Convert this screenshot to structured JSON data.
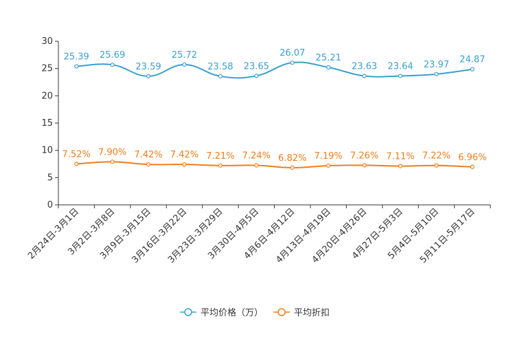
{
  "chart_data": {
    "type": "line",
    "title": "",
    "xlabel": "",
    "ylabel": "",
    "ylim": [
      0,
      30
    ],
    "yticks": [
      0,
      5,
      10,
      15,
      20,
      25,
      30
    ],
    "grid": false,
    "legend_position": "bottom-center",
    "categories": [
      "2月24日-3月1日",
      "3月2日-3月8日",
      "3月9日-3月15日",
      "3月16日-3月22日",
      "3月23日-3月29日",
      "3月30日-4月5日",
      "4月6日-4月12日",
      "4月13日-4月19日",
      "4月20日-4月26日",
      "4月27日-5月3日",
      "5月4日-5月10日",
      "5月11日-5月17日"
    ],
    "series": [
      {
        "name": "平均价格（万）",
        "color": "#3a9fd0",
        "values": [
          25.39,
          25.69,
          23.59,
          25.72,
          23.58,
          23.65,
          26.07,
          25.21,
          23.63,
          23.64,
          23.97,
          24.87
        ],
        "labels": [
          "25.39",
          "25.69",
          "23.59",
          "25.72",
          "23.58",
          "23.65",
          "26.07",
          "25.21",
          "23.63",
          "23.64",
          "23.97",
          "24.87"
        ]
      },
      {
        "name": "平均折扣",
        "color": "#f07d1a",
        "values": [
          7.52,
          7.9,
          7.42,
          7.42,
          7.21,
          7.24,
          6.82,
          7.19,
          7.26,
          7.11,
          7.22,
          6.96
        ],
        "labels": [
          "7.52%",
          "7.90%",
          "7.42%",
          "7.42%",
          "7.21%",
          "7.24%",
          "6.82%",
          "7.19%",
          "7.26%",
          "7.11%",
          "7.22%",
          "6.96%"
        ]
      }
    ]
  }
}
